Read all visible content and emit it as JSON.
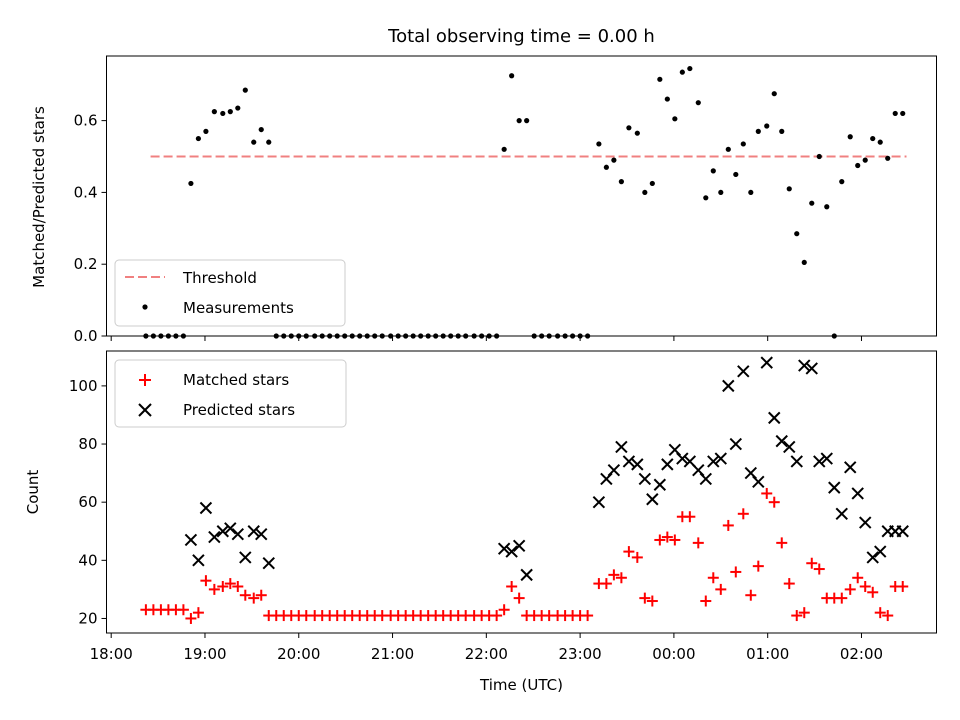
{
  "chart_data": [
    {
      "type": "scatter",
      "title": "Total observing time = 0.00 h",
      "ylabel": "Matched/Predicted stars",
      "xlabel": "",
      "ylim": [
        0,
        0.78
      ],
      "yticks": [
        0.0,
        0.2,
        0.4,
        0.6
      ],
      "ytick_labels": [
        "0.0",
        "0.2",
        "0.4",
        "0.6"
      ],
      "legend": {
        "placement": "lower-left",
        "entries": [
          "Threshold",
          "Measurements"
        ]
      },
      "colors": {
        "threshold": "#f08080",
        "measurements": "#000000"
      },
      "threshold": {
        "name": "Threshold",
        "value": 0.5,
        "x_range": [
          18.42,
          26.48
        ]
      },
      "series": [
        {
          "name": "Measurements",
          "x": [
            18.37,
            18.45,
            18.53,
            18.61,
            18.69,
            18.77,
            18.85,
            18.93,
            19.01,
            19.1,
            19.19,
            19.27,
            19.35,
            19.43,
            19.52,
            19.6,
            19.68,
            19.76,
            19.84,
            19.92,
            20.0,
            20.08,
            20.17,
            20.25,
            20.33,
            20.41,
            20.49,
            20.57,
            20.65,
            20.73,
            20.81,
            20.89,
            20.98,
            21.06,
            21.14,
            21.22,
            21.3,
            21.38,
            21.46,
            21.54,
            21.62,
            21.7,
            21.78,
            21.87,
            21.95,
            22.03,
            22.11,
            22.19,
            22.27,
            22.35,
            22.43,
            22.51,
            22.59,
            22.67,
            22.76,
            22.84,
            22.92,
            23.0,
            23.08,
            23.2,
            23.28,
            23.36,
            23.44,
            23.52,
            23.61,
            23.69,
            23.77,
            23.85,
            23.93,
            24.01,
            24.09,
            24.17,
            24.26,
            24.34,
            24.42,
            24.5,
            24.58,
            24.66,
            24.74,
            24.82,
            24.9,
            24.99,
            25.07,
            25.15,
            25.23,
            25.31,
            25.39,
            25.47,
            25.55,
            25.63,
            25.71,
            25.79,
            25.88,
            25.96,
            26.04,
            26.12,
            26.2,
            26.28,
            26.36,
            26.44
          ],
          "y": [
            0,
            0,
            0,
            0,
            0,
            0,
            0.425,
            0.55,
            0.57,
            0.625,
            0.62,
            0.625,
            0.635,
            0.685,
            0.54,
            0.575,
            0.54,
            0,
            0,
            0,
            0,
            0,
            0,
            0,
            0,
            0,
            0,
            0,
            0,
            0,
            0,
            0,
            0,
            0,
            0,
            0,
            0,
            0,
            0,
            0,
            0,
            0,
            0,
            0,
            0,
            0,
            0,
            0.52,
            0.725,
            0.6,
            0.6,
            0,
            0,
            0,
            0,
            0,
            0,
            0,
            0,
            0.535,
            0.47,
            0.49,
            0.43,
            0.58,
            0.565,
            0.4,
            0.425,
            0.715,
            0.66,
            0.605,
            0.735,
            0.745,
            0.65,
            0.385,
            0.46,
            0.4,
            0.52,
            0.45,
            0.535,
            0.4,
            0.57,
            0.585,
            0.675,
            0.57,
            0.41,
            0.285,
            0.205,
            0.37,
            0.5,
            0.36,
            0,
            0.43,
            0.555,
            0.475,
            0.49,
            0.55,
            0.54,
            0.495,
            0.62,
            0.62
          ]
        }
      ]
    },
    {
      "type": "scatter",
      "xlabel": "Time (UTC)",
      "ylabel": "Count",
      "ylim": [
        15,
        112
      ],
      "yticks": [
        20,
        40,
        60,
        80,
        100
      ],
      "ytick_labels": [
        "20",
        "40",
        "60",
        "80",
        "100"
      ],
      "xlim": [
        17.95,
        26.8
      ],
      "xticks": [
        18,
        19,
        20,
        21,
        22,
        23,
        24,
        25,
        26
      ],
      "xtick_labels": [
        "18:00",
        "19:00",
        "20:00",
        "21:00",
        "22:00",
        "23:00",
        "00:00",
        "01:00",
        "02:00"
      ],
      "legend": {
        "placement": "upper-left",
        "entries": [
          "Matched stars",
          "Predicted stars"
        ]
      },
      "colors": {
        "matched": "#ff0000",
        "predicted": "#000000"
      },
      "series": [
        {
          "name": "Matched stars",
          "x": [
            18.37,
            18.45,
            18.53,
            18.61,
            18.69,
            18.77,
            18.85,
            18.93,
            19.01,
            19.1,
            19.19,
            19.27,
            19.35,
            19.43,
            19.52,
            19.6,
            19.68,
            19.76,
            19.84,
            19.92,
            20.0,
            20.08,
            20.17,
            20.25,
            20.33,
            20.41,
            20.49,
            20.57,
            20.65,
            20.73,
            20.81,
            20.89,
            20.98,
            21.06,
            21.14,
            21.22,
            21.3,
            21.38,
            21.46,
            21.54,
            21.62,
            21.7,
            21.78,
            21.87,
            21.95,
            22.03,
            22.11,
            22.19,
            22.27,
            22.35,
            22.43,
            22.51,
            22.59,
            22.67,
            22.76,
            22.84,
            22.92,
            23.0,
            23.08,
            23.2,
            23.28,
            23.36,
            23.44,
            23.52,
            23.61,
            23.69,
            23.77,
            23.85,
            23.93,
            24.01,
            24.09,
            24.17,
            24.26,
            24.34,
            24.42,
            24.5,
            24.58,
            24.66,
            24.74,
            24.82,
            24.9,
            24.99,
            25.07,
            25.15,
            25.23,
            25.31,
            25.39,
            25.47,
            25.55,
            25.63,
            25.71,
            25.79,
            25.88,
            25.96,
            26.04,
            26.12,
            26.2,
            26.28,
            26.36,
            26.44
          ],
          "y": [
            23,
            23,
            23,
            23,
            23,
            23,
            20,
            22,
            33,
            30,
            31,
            32,
            31,
            28,
            27,
            28,
            21,
            21,
            21,
            21,
            21,
            21,
            21,
            21,
            21,
            21,
            21,
            21,
            21,
            21,
            21,
            21,
            21,
            21,
            21,
            21,
            21,
            21,
            21,
            21,
            21,
            21,
            21,
            21,
            21,
            21,
            21,
            23,
            31,
            27,
            21,
            21,
            21,
            21,
            21,
            21,
            21,
            21,
            21,
            32,
            32,
            35,
            34,
            43,
            41,
            27,
            26,
            47,
            48,
            47,
            55,
            55,
            46,
            26,
            34,
            30,
            52,
            36,
            56,
            28,
            38,
            63,
            60,
            46,
            32,
            21,
            22,
            39,
            37,
            27,
            27,
            27,
            30,
            34,
            31,
            29,
            22,
            21,
            31,
            31
          ]
        },
        {
          "name": "Predicted stars",
          "x": [
            18.85,
            18.93,
            19.01,
            19.1,
            19.19,
            19.27,
            19.35,
            19.43,
            19.52,
            19.6,
            19.68,
            22.19,
            22.27,
            22.35,
            22.43,
            23.2,
            23.28,
            23.36,
            23.44,
            23.52,
            23.61,
            23.69,
            23.77,
            23.85,
            23.93,
            24.01,
            24.09,
            24.17,
            24.26,
            24.34,
            24.42,
            24.5,
            24.58,
            24.66,
            24.74,
            24.82,
            24.9,
            24.99,
            25.07,
            25.15,
            25.23,
            25.31,
            25.39,
            25.47,
            25.55,
            25.63,
            25.71,
            25.79,
            25.88,
            25.96,
            26.04,
            26.12,
            26.2,
            26.28,
            26.36,
            26.44
          ],
          "y": [
            47,
            40,
            58,
            48,
            50,
            51,
            49,
            41,
            50,
            49,
            39,
            44,
            43,
            45,
            35,
            60,
            68,
            71,
            79,
            74,
            73,
            68,
            61,
            66,
            73,
            78,
            75,
            74,
            71,
            68,
            74,
            75,
            100,
            80,
            105,
            70,
            67,
            108,
            89,
            81,
            79,
            74,
            107,
            106,
            74,
            75,
            65,
            56,
            72,
            63,
            53,
            41,
            43,
            50,
            50,
            50
          ]
        }
      ]
    }
  ]
}
